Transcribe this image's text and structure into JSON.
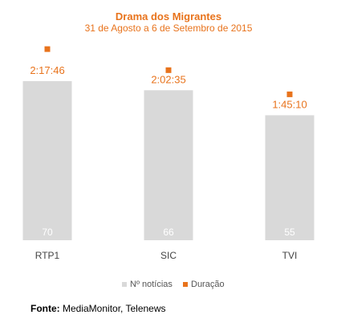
{
  "chart_data": {
    "type": "bar",
    "title": "Drama dos Migrantes",
    "subtitle": "31 de Agosto a 6 de Setembro de 2015",
    "categories": [
      "RTP1",
      "SIC",
      "TVI"
    ],
    "series": [
      {
        "name": "Nº notícias",
        "type": "bar",
        "values": [
          70,
          66,
          55
        ],
        "labels": [
          "70",
          "66",
          "55"
        ],
        "color": "#D9D9D9"
      },
      {
        "name": "Duração",
        "type": "point",
        "values_seconds": [
          8266,
          7355,
          6310
        ],
        "labels": [
          "2:17:46",
          "2:02:35",
          "1:45:10"
        ],
        "color": "#E8731C"
      }
    ],
    "ylim": [
      0,
      70
    ],
    "duration_axis_range_seconds": [
      0,
      9000
    ],
    "grid": false,
    "legend_position": "bottom"
  },
  "source": {
    "label": "Fonte:",
    "text": "MediaMonitor, Telenews"
  },
  "colors": {
    "accent": "#E8731C",
    "bar": "#D9D9D9",
    "bar_label": "#ffffff",
    "axis_text": "#444444"
  }
}
